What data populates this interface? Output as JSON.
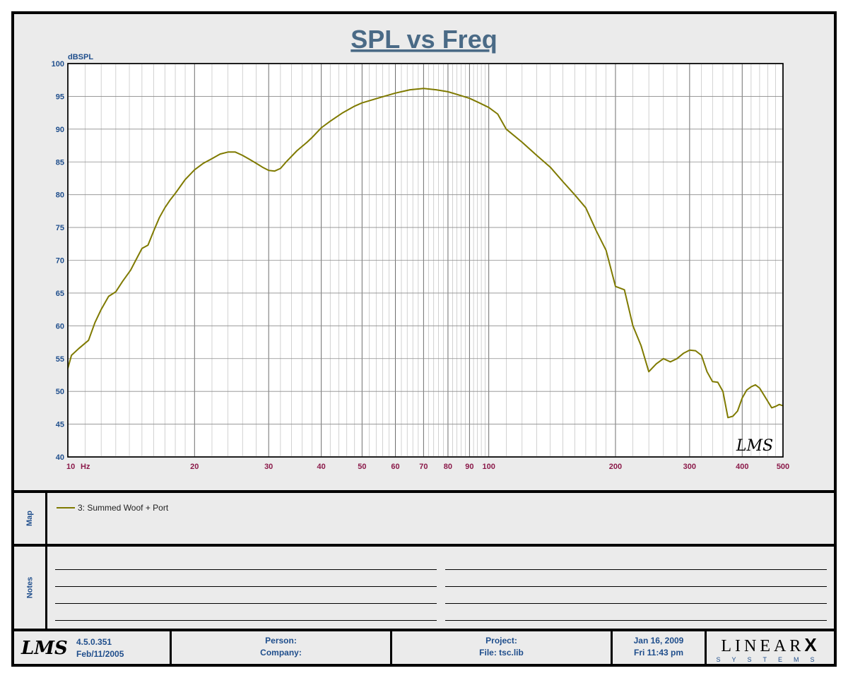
{
  "chart_data": {
    "type": "line",
    "title": "SPL vs Freq",
    "ylabel": "dBSPL",
    "xlabel": "Hz",
    "x_scale": "log",
    "xlim": [
      10,
      500
    ],
    "ylim": [
      40,
      100
    ],
    "grid": true,
    "y_ticks": [
      100,
      95,
      90,
      85,
      80,
      75,
      70,
      65,
      60,
      55,
      50,
      45,
      40
    ],
    "x_tick_labels": [
      {
        "x": 10,
        "label": "10"
      },
      {
        "x": 20,
        "label": "20"
      },
      {
        "x": 30,
        "label": "30"
      },
      {
        "x": 40,
        "label": "40"
      },
      {
        "x": 50,
        "label": "50"
      },
      {
        "x": 60,
        "label": "60"
      },
      {
        "x": 70,
        "label": "70"
      },
      {
        "x": 80,
        "label": "80"
      },
      {
        "x": 90,
        "label": "90"
      },
      {
        "x": 100,
        "label": "100"
      },
      {
        "x": 200,
        "label": "200"
      },
      {
        "x": 300,
        "label": "300"
      },
      {
        "x": 400,
        "label": "400"
      },
      {
        "x": 500,
        "label": "500"
      }
    ],
    "series": [
      {
        "name": "3: Summed Woof + Port",
        "color": "#7f7a00",
        "x": [
          10,
          10.2,
          10.6,
          11.2,
          11.6,
          12,
          12.5,
          13,
          13.5,
          14.1,
          14.5,
          15,
          15.5,
          16,
          16.5,
          17,
          17.5,
          18,
          19,
          20,
          21,
          22,
          23,
          24,
          25,
          26,
          27,
          28,
          29,
          30,
          31,
          32,
          33,
          35,
          37,
          38,
          40,
          42,
          45,
          48,
          50,
          55,
          60,
          65,
          70,
          75,
          80,
          85,
          90,
          95,
          100,
          105,
          110,
          120,
          130,
          140,
          150,
          160,
          170,
          180,
          190,
          200,
          210,
          220,
          230,
          240,
          250,
          260,
          270,
          280,
          290,
          300,
          310,
          320,
          330,
          340,
          350,
          360,
          370,
          380,
          390,
          400,
          410,
          420,
          430,
          440,
          450,
          460,
          470,
          480,
          490,
          500
        ],
        "values": [
          53.5,
          55.5,
          56.5,
          57.8,
          60.5,
          62.5,
          64.5,
          65.2,
          66.8,
          68.5,
          70.0,
          71.8,
          72.3,
          74.5,
          76.5,
          78.0,
          79.2,
          80.2,
          82.3,
          83.8,
          84.8,
          85.5,
          86.2,
          86.5,
          86.5,
          86.0,
          85.4,
          84.8,
          84.2,
          83.7,
          83.6,
          84.0,
          85.0,
          86.7,
          88.0,
          88.7,
          90.2,
          91.2,
          92.5,
          93.5,
          94.0,
          94.8,
          95.5,
          96.0,
          96.2,
          96.0,
          95.7,
          95.2,
          94.7,
          94.0,
          93.3,
          92.3,
          90.0,
          88.0,
          86.0,
          84.2,
          82.0,
          80.0,
          78.0,
          74.5,
          71.5,
          66.0,
          65.5,
          60.0,
          57.0,
          53.0,
          54.2,
          55.0,
          54.5,
          55.0,
          55.8,
          56.3,
          56.2,
          55.5,
          53.0,
          51.5,
          51.4,
          50.0,
          46.0,
          46.2,
          47.0,
          49.0,
          50.2,
          50.7,
          51.0,
          50.5,
          49.5,
          48.5,
          47.5,
          47.7,
          48.0,
          47.8
        ]
      }
    ]
  },
  "map_panel": {
    "label": "Map",
    "legend": [
      {
        "label": "3: Summed Woof + Port",
        "color": "#7f7a00"
      }
    ]
  },
  "notes_panel": {
    "label": "Notes"
  },
  "footer": {
    "logo_text": "LMS",
    "version": "4.5.0.351",
    "version_date": "Feb/11/2005",
    "person_label": "Person:",
    "company_label": "Company:",
    "project_label": "Project:",
    "file_label": "File: tsc.lib",
    "date": "Jan 16, 2009",
    "time": "Fri 11:43 pm",
    "brand": "LINEAR",
    "brand_mark": "X",
    "brand_sub": "SYSTEMS"
  },
  "watermark": "LMS",
  "colors": {
    "axis_text": "#1f4e8c",
    "x_tick_text": "#8b1a4a",
    "title_text": "#4a6a86",
    "curve": "#7f7a00",
    "grid": "#8c8c8c",
    "panel_bg": "#ebebeb"
  }
}
